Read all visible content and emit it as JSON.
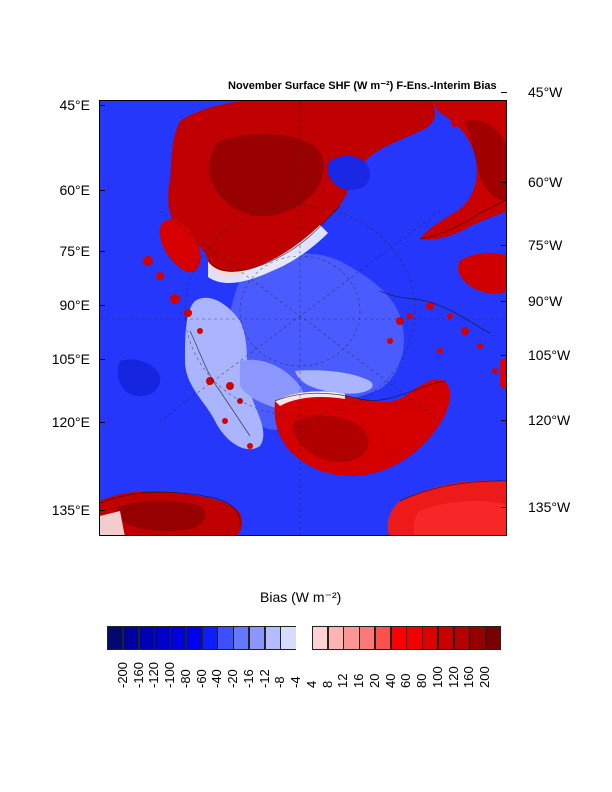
{
  "title": "November Surface SHF (W m⁻²) F-Ens.-Interim Bias",
  "left_axis_labels": [
    "45°E",
    "60°E",
    "75°E",
    "90°E",
    "105°E",
    "120°E",
    "135°E"
  ],
  "right_axis_labels": [
    "45°W",
    "60°W",
    "75°W",
    "90°W",
    "105°W",
    "120°W",
    "135°W"
  ],
  "colorbar": {
    "title": "Bias (W m⁻²)",
    "levels": [
      "-200",
      "-160",
      "-120",
      "-100",
      "-80",
      "-60",
      "-40",
      "-20",
      "-16",
      "-12",
      "-8",
      "-4",
      "4",
      "8",
      "12",
      "16",
      "20",
      "40",
      "60",
      "80",
      "100",
      "120",
      "160",
      "200"
    ],
    "colors": [
      "#000a6e",
      "#0000a0",
      "#0000b4",
      "#0000c8",
      "#0000dc",
      "#0000f0",
      "#0a1eff",
      "#3c50ff",
      "#6478ff",
      "#8c96ff",
      "#b4bcff",
      "#d7dcff",
      "#ffffff",
      "#ffd2d2",
      "#ffb4b4",
      "#ff9696",
      "#ff7878",
      "#ff5050",
      "#ff0000",
      "#f00000",
      "#dc0000",
      "#c80000",
      "#b40000",
      "#960000",
      "#780000"
    ]
  },
  "colors": {
    "negative_bias": "#2335ff",
    "positive_bias": "#c80000",
    "near_zero": "#b4bcff"
  }
}
